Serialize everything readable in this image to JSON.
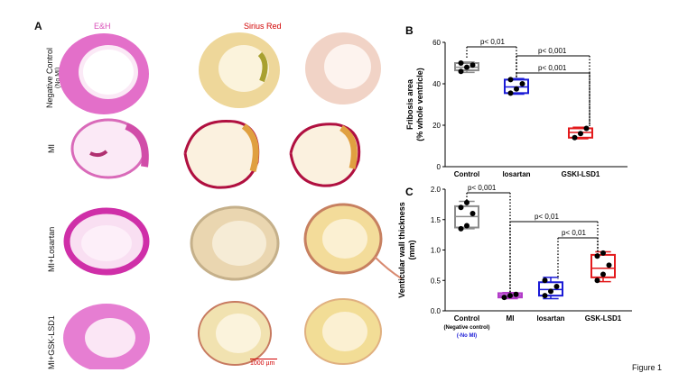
{
  "panel_a": {
    "letter": "A",
    "col_he": "E&H",
    "col_sirius": "Sirius Red",
    "rows": [
      {
        "label": "Negative Control",
        "sub": "(No MI)"
      },
      {
        "label": "MI",
        "sub": ""
      },
      {
        "label": "MI+Losartan",
        "sub": ""
      },
      {
        "label": "MI+GSK-LSD1",
        "sub": ""
      }
    ],
    "scale_bar": "1000 µm"
  },
  "figure_label": "Figure 1",
  "colors": {
    "control": "#8c8c8c",
    "mi": "#b23cc8",
    "losartan": "#1a1ad6",
    "gsk": "#e31a1c",
    "he_pink": "#d94fb8",
    "sirius_red": "#d10000"
  },
  "chart_data": [
    {
      "panel": "B",
      "type": "box",
      "ylabel": "Fribosis area (% whole ventricle)",
      "ylim": [
        0,
        60
      ],
      "yticks": [
        "0",
        "20",
        "40",
        "60"
      ],
      "categories": [
        "Control",
        "losartan",
        "GSKI-LSD1"
      ],
      "boxes": [
        {
          "name": "Control",
          "q1": 46.5,
          "median": 48,
          "q3": 50,
          "min": 45.5,
          "max": 50.5,
          "points": [
            46,
            48,
            49,
            50
          ]
        },
        {
          "name": "losartan",
          "q1": 35.5,
          "median": 38.5,
          "q3": 42,
          "min": 35,
          "max": 42.5,
          "points": [
            35.5,
            37.5,
            40,
            42
          ]
        },
        {
          "name": "GSKI-LSD1",
          "q1": 14,
          "median": 16.5,
          "q3": 18.5,
          "min": 13.5,
          "max": 19,
          "points": [
            14,
            16,
            18.5
          ]
        }
      ],
      "annotations": [
        "p< 0,01",
        "p< 0,001",
        "p< 0,001"
      ]
    },
    {
      "panel": "C",
      "type": "box",
      "ylabel": "Venticular wall thickness (mm)",
      "ylim": [
        0,
        2
      ],
      "yticks": [
        "0.0",
        "0.5",
        "1.0",
        "1.5",
        "2.0"
      ],
      "categories": [
        "Control",
        "MI",
        "losartan",
        "GSK-LSD1"
      ],
      "category_sub": [
        "(Negative control)",
        "",
        "",
        ""
      ],
      "category_sub2": [
        "(-No MI)",
        "",
        "",
        ""
      ],
      "boxes": [
        {
          "name": "Control",
          "q1": 1.37,
          "median": 1.55,
          "q3": 1.72,
          "min": 1.35,
          "max": 1.8,
          "points": [
            1.35,
            1.4,
            1.6,
            1.7,
            1.78
          ]
        },
        {
          "name": "MI",
          "q1": 0.22,
          "median": 0.25,
          "q3": 0.29,
          "min": 0.2,
          "max": 0.3,
          "points": [
            0.22,
            0.25,
            0.27
          ]
        },
        {
          "name": "losartan",
          "q1": 0.25,
          "median": 0.35,
          "q3": 0.47,
          "min": 0.2,
          "max": 0.55,
          "points": [
            0.25,
            0.32,
            0.4,
            0.5
          ]
        },
        {
          "name": "GSK-LSD1",
          "q1": 0.55,
          "median": 0.7,
          "q3": 0.92,
          "min": 0.48,
          "max": 0.97,
          "points": [
            0.5,
            0.6,
            0.75,
            0.9,
            0.95
          ]
        }
      ],
      "annotations": [
        "p< 0,001",
        "p< 0,01",
        "p< 0,01"
      ]
    }
  ]
}
